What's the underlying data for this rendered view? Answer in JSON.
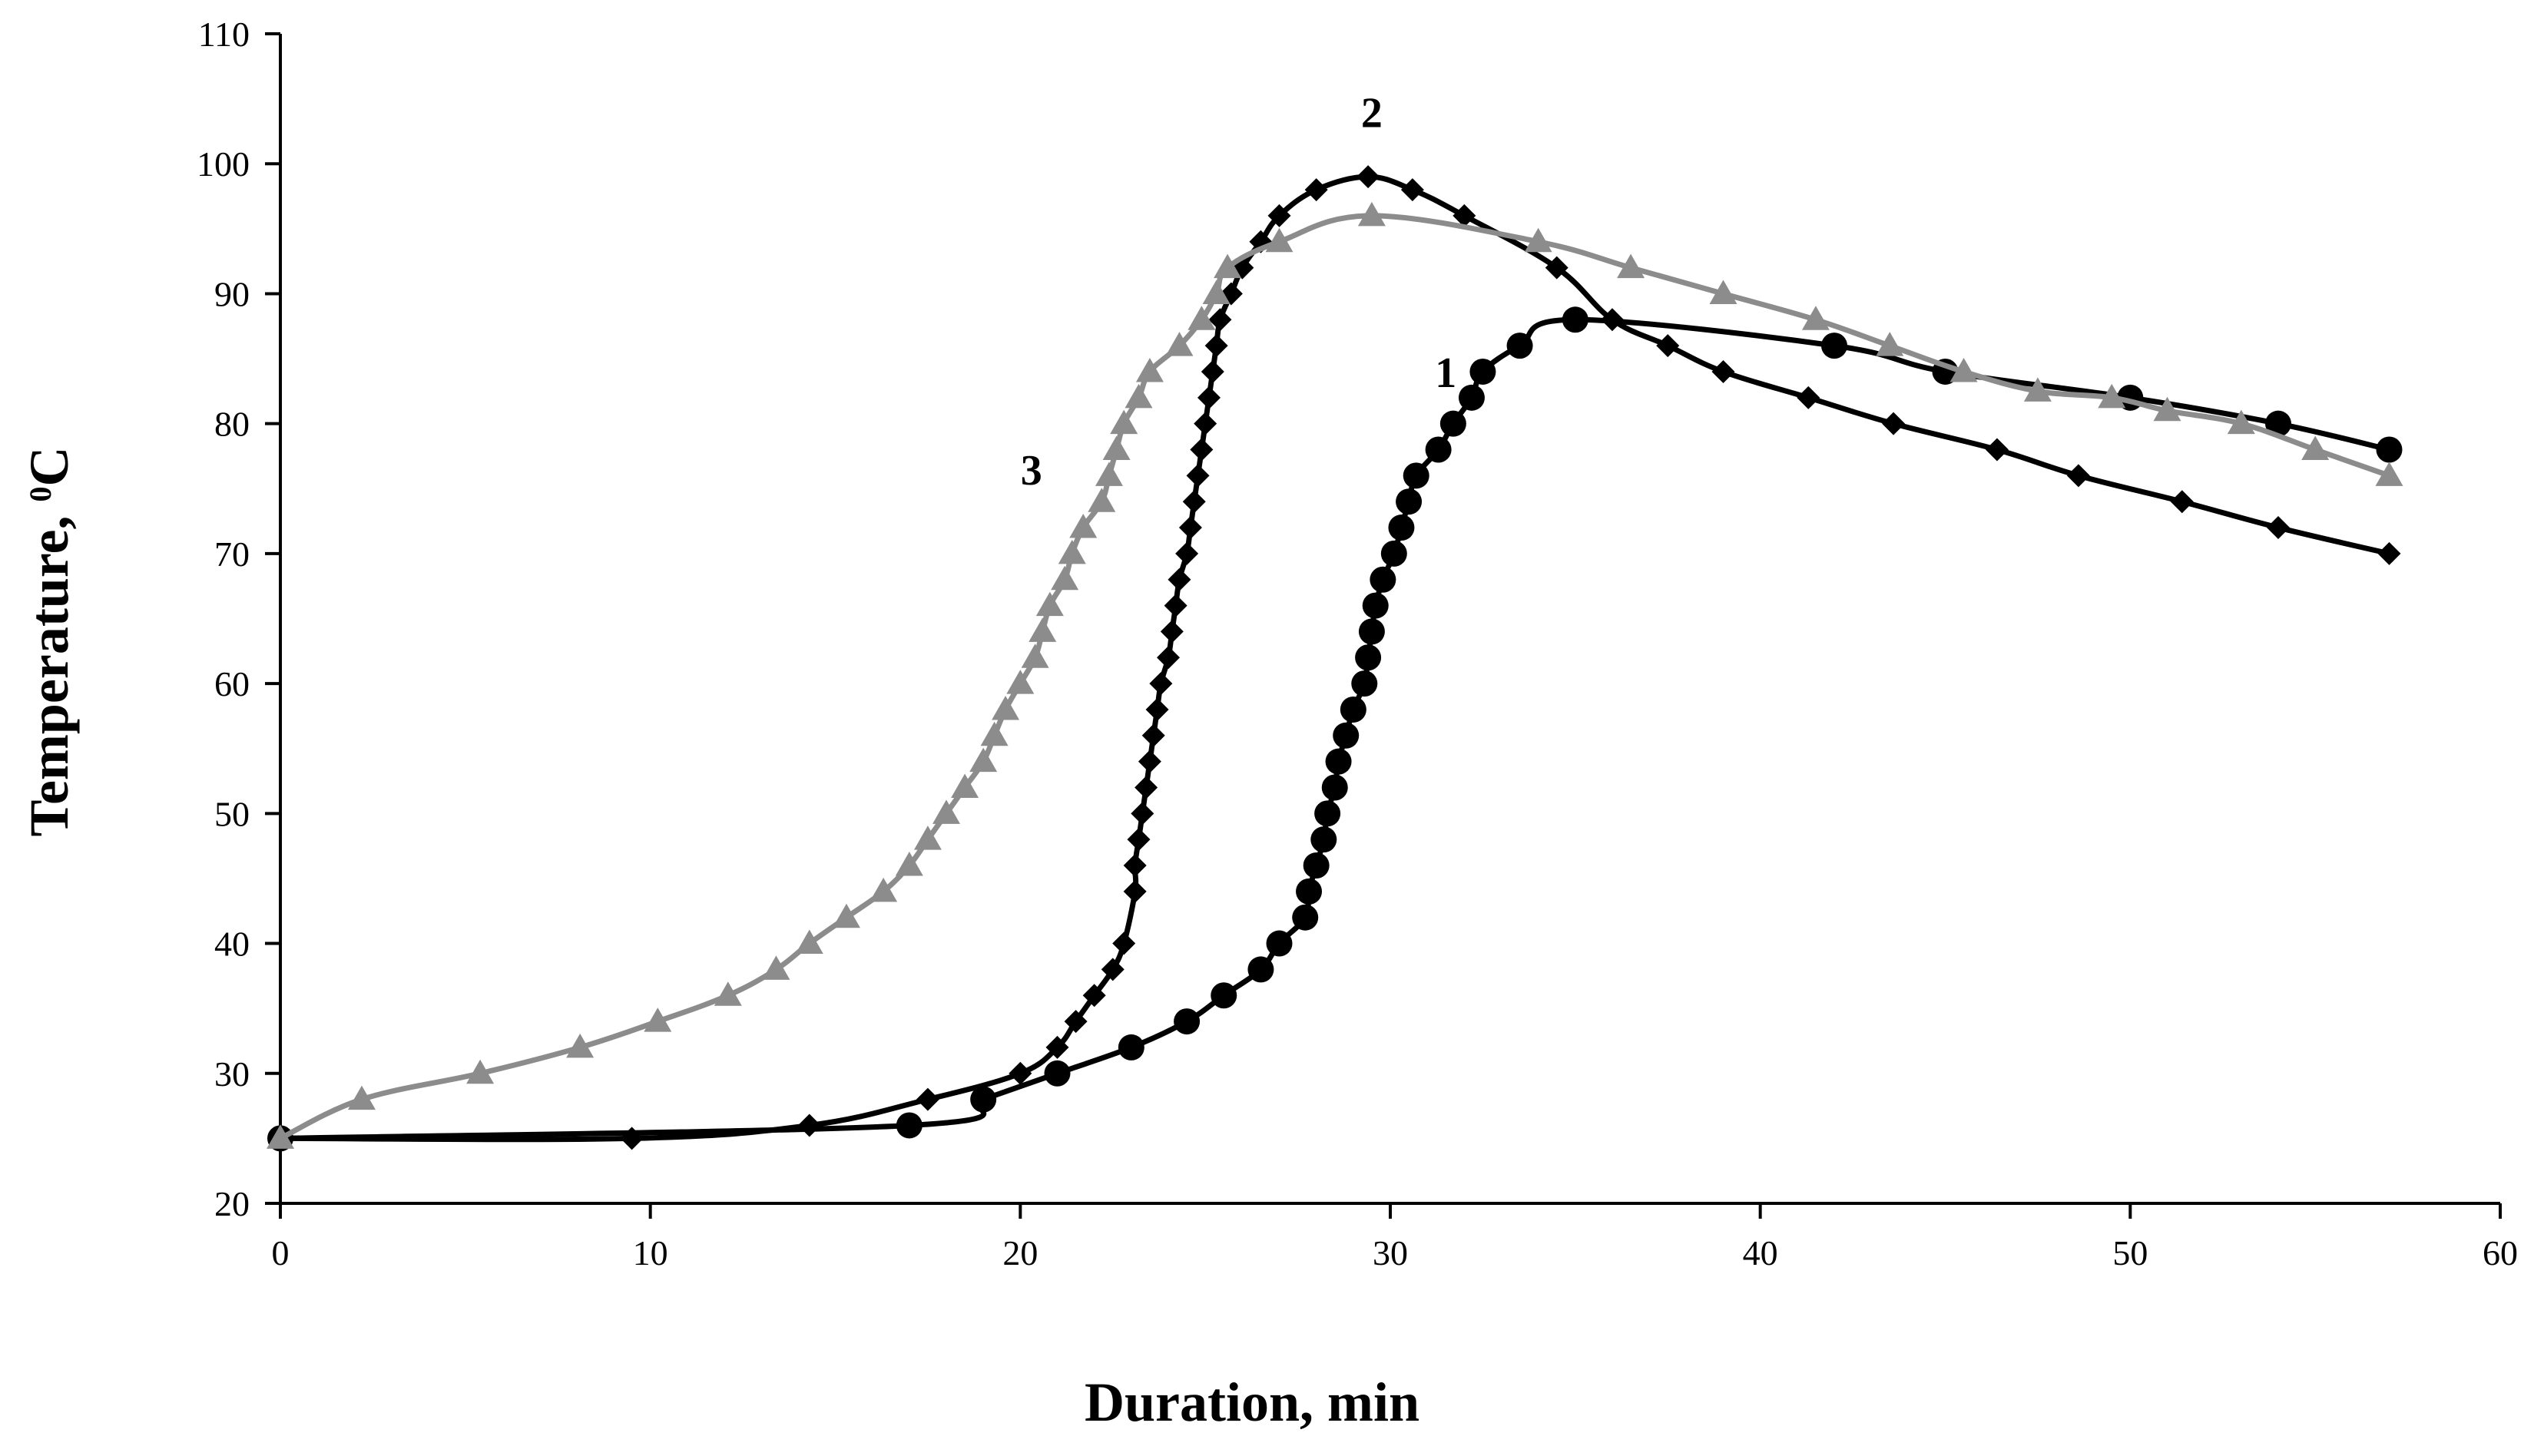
{
  "chart_data": {
    "type": "line",
    "title": "",
    "xlabel": "Duration, min",
    "ylabel": {
      "prefix": "Temperature, ",
      "superscript": "0",
      "suffix": "C"
    },
    "xlim": [
      0,
      60
    ],
    "ylim": [
      20,
      110
    ],
    "x_ticks": [
      0,
      10,
      20,
      30,
      40,
      50,
      60
    ],
    "y_ticks": [
      20,
      30,
      40,
      50,
      60,
      70,
      80,
      90,
      100,
      110
    ],
    "grid": false,
    "series": [
      {
        "name": "1",
        "marker": "circle",
        "color": "#000000",
        "label_at": [
          31.5,
          84
        ],
        "points": [
          [
            0,
            25
          ],
          [
            17,
            26
          ],
          [
            19,
            28
          ],
          [
            21,
            30
          ],
          [
            23,
            32
          ],
          [
            24.5,
            34
          ],
          [
            25.5,
            36
          ],
          [
            26.5,
            38
          ],
          [
            27,
            40
          ],
          [
            27.7,
            42
          ],
          [
            27.8,
            44
          ],
          [
            28,
            46
          ],
          [
            28.2,
            48
          ],
          [
            28.3,
            50
          ],
          [
            28.5,
            52
          ],
          [
            28.6,
            54
          ],
          [
            28.8,
            56
          ],
          [
            29,
            58
          ],
          [
            29.3,
            60
          ],
          [
            29.4,
            62
          ],
          [
            29.5,
            64
          ],
          [
            29.6,
            66
          ],
          [
            29.8,
            68
          ],
          [
            30.1,
            70
          ],
          [
            30.3,
            72
          ],
          [
            30.5,
            74
          ],
          [
            30.7,
            76
          ],
          [
            31.3,
            78
          ],
          [
            31.7,
            80
          ],
          [
            32.2,
            82
          ],
          [
            32.5,
            84
          ],
          [
            33.5,
            86
          ],
          [
            35,
            88
          ],
          [
            42,
            86
          ],
          [
            45,
            84
          ],
          [
            50,
            82
          ],
          [
            54,
            80
          ],
          [
            57,
            78
          ]
        ]
      },
      {
        "name": "2",
        "marker": "diamond",
        "color": "#000000",
        "label_at": [
          29.5,
          104
        ],
        "points": [
          [
            0,
            25
          ],
          [
            9.5,
            25
          ],
          [
            14.3,
            26
          ],
          [
            17.5,
            28
          ],
          [
            20,
            30
          ],
          [
            21,
            32
          ],
          [
            21.5,
            34
          ],
          [
            22,
            36
          ],
          [
            22.5,
            38
          ],
          [
            22.8,
            40
          ],
          [
            23.1,
            44
          ],
          [
            23.1,
            46
          ],
          [
            23.2,
            48
          ],
          [
            23.3,
            50
          ],
          [
            23.4,
            52
          ],
          [
            23.5,
            54
          ],
          [
            23.6,
            56
          ],
          [
            23.7,
            58
          ],
          [
            23.8,
            60
          ],
          [
            24,
            62
          ],
          [
            24.1,
            64
          ],
          [
            24.2,
            66
          ],
          [
            24.3,
            68
          ],
          [
            24.5,
            70
          ],
          [
            24.6,
            72
          ],
          [
            24.7,
            74
          ],
          [
            24.8,
            76
          ],
          [
            24.9,
            78
          ],
          [
            25,
            80
          ],
          [
            25.1,
            82
          ],
          [
            25.2,
            84
          ],
          [
            25.3,
            86
          ],
          [
            25.4,
            88
          ],
          [
            25.7,
            90
          ],
          [
            26,
            92
          ],
          [
            26.5,
            94
          ],
          [
            27,
            96
          ],
          [
            28,
            98
          ],
          [
            29.4,
            99
          ],
          [
            30.6,
            98
          ],
          [
            32,
            96
          ],
          [
            34.5,
            92
          ],
          [
            36,
            88
          ],
          [
            37.5,
            86
          ],
          [
            39,
            84
          ],
          [
            41.3,
            82
          ],
          [
            43.6,
            80
          ],
          [
            46.4,
            78
          ],
          [
            48.6,
            76
          ],
          [
            51.4,
            74
          ],
          [
            54,
            72
          ],
          [
            57,
            70
          ]
        ]
      },
      {
        "name": "3",
        "marker": "triangle",
        "color": "#8c8c8c",
        "label_at": [
          20.3,
          76.5
        ],
        "points": [
          [
            0,
            25
          ],
          [
            2.2,
            28
          ],
          [
            5.4,
            30
          ],
          [
            8.1,
            32
          ],
          [
            10.2,
            34
          ],
          [
            12.1,
            36
          ],
          [
            13.4,
            38
          ],
          [
            14.3,
            40
          ],
          [
            15.3,
            42
          ],
          [
            16.3,
            44
          ],
          [
            17,
            46
          ],
          [
            17.5,
            48
          ],
          [
            18,
            50
          ],
          [
            18.5,
            52
          ],
          [
            19,
            54
          ],
          [
            19.3,
            56
          ],
          [
            19.6,
            58
          ],
          [
            20,
            60
          ],
          [
            20.4,
            62
          ],
          [
            20.6,
            64
          ],
          [
            20.8,
            66
          ],
          [
            21.2,
            68
          ],
          [
            21.4,
            70
          ],
          [
            21.7,
            72
          ],
          [
            22.2,
            74
          ],
          [
            22.4,
            76
          ],
          [
            22.6,
            78
          ],
          [
            22.8,
            80
          ],
          [
            23.2,
            82
          ],
          [
            23.5,
            84
          ],
          [
            24.3,
            86
          ],
          [
            24.9,
            88
          ],
          [
            25.3,
            90
          ],
          [
            25.6,
            92
          ],
          [
            27,
            94
          ],
          [
            29.5,
            96
          ],
          [
            34,
            94
          ],
          [
            36.5,
            92
          ],
          [
            39,
            90
          ],
          [
            41.5,
            88
          ],
          [
            43.5,
            86
          ],
          [
            45.5,
            84
          ],
          [
            47.5,
            82.5
          ],
          [
            49.5,
            82
          ],
          [
            51,
            81
          ],
          [
            53,
            80
          ],
          [
            55,
            78
          ],
          [
            57,
            76
          ]
        ]
      }
    ]
  }
}
